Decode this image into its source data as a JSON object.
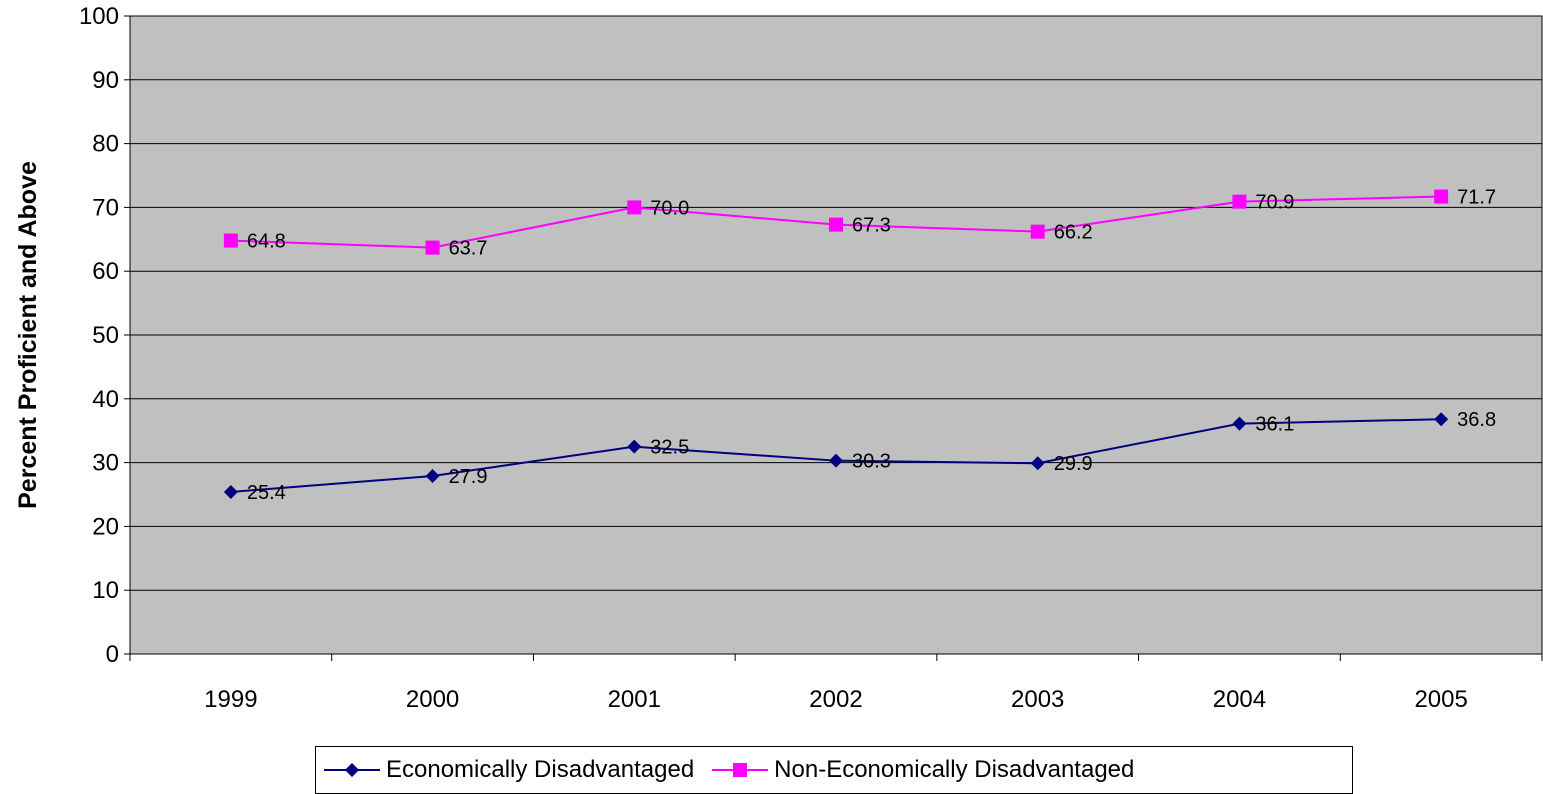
{
  "chart_data": {
    "type": "line",
    "title": "",
    "xlabel": "",
    "ylabel": "Percent Proficient and Above",
    "categories": [
      "1999",
      "2000",
      "2001",
      "2002",
      "2003",
      "2004",
      "2005"
    ],
    "ylim": [
      0,
      100
    ],
    "yticks": [
      "0",
      "10",
      "20",
      "30",
      "40",
      "50",
      "60",
      "70",
      "80",
      "90",
      "100"
    ],
    "grid": true,
    "legend_position": "bottom",
    "plot_background": "#c0c0c0",
    "series": [
      {
        "name": "Economically Disadvantaged",
        "values": [
          25.4,
          27.9,
          32.5,
          30.3,
          29.9,
          36.1,
          36.8
        ],
        "labels": [
          "25.4",
          "27.9",
          "32.5",
          "30.3",
          "29.9",
          "36.1",
          "36.8"
        ],
        "color": "#000080",
        "marker": "diamond"
      },
      {
        "name": "Non-Economically Disadvantaged",
        "values": [
          64.8,
          63.7,
          70.0,
          67.3,
          66.2,
          70.9,
          71.7
        ],
        "labels": [
          "64.8",
          "63.7",
          "70.0",
          "67.3",
          "66.2",
          "70.9",
          "71.7"
        ],
        "color": "#ff00ff",
        "marker": "square"
      }
    ]
  }
}
